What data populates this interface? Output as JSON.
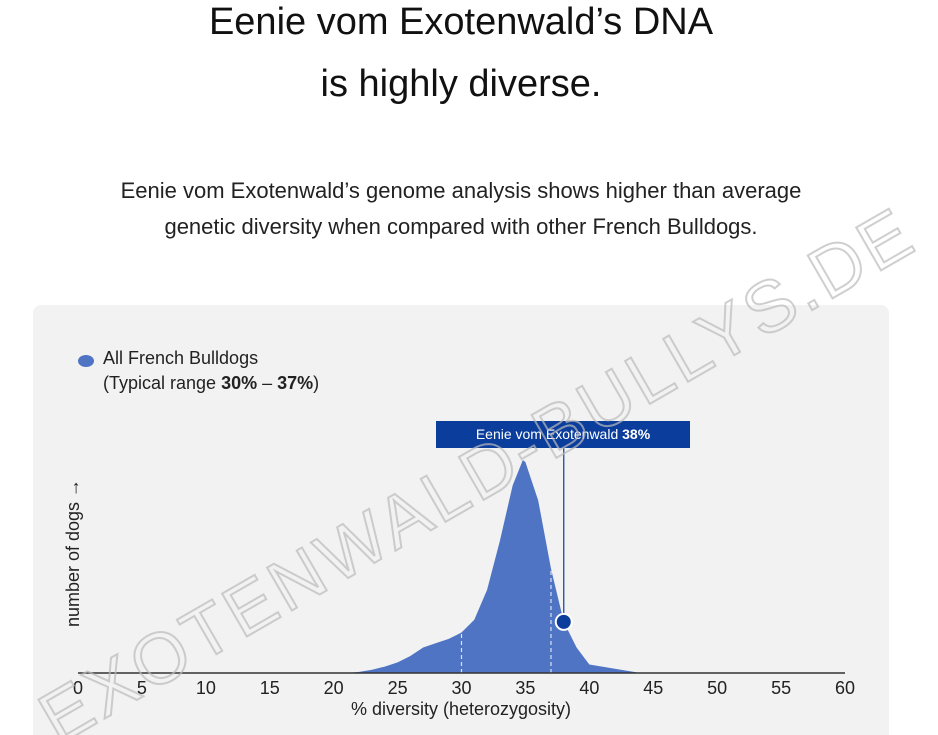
{
  "chart_data": {
    "type": "area",
    "title": [
      "Eenie vom Exotenwald’s DNA",
      "is highly diverse."
    ],
    "subtitle": [
      "Eenie vom Exotenwald’s genome analysis shows higher than average",
      "genetic diversity when compared with other French Bulldogs."
    ],
    "legend_label": "All French Bulldogs",
    "typical_range": [
      30,
      37
    ],
    "typical_range_value_labels": [
      "30%",
      "37%"
    ],
    "typical_range_text": {
      "prefix": "(Typical range ",
      "separator": " – ",
      "suffix": ")"
    },
    "marker": {
      "name": "Eenie vom Exotenwald",
      "value": 38,
      "value_label": "38%",
      "density": 24,
      "color": "#0b3d9c"
    },
    "x": [
      21,
      22,
      23,
      24,
      25,
      26,
      27,
      28,
      29,
      30,
      31,
      32,
      33,
      34,
      34.8,
      35,
      36,
      37,
      38,
      39,
      40,
      41,
      42,
      43,
      44
    ],
    "values": [
      0,
      0.5,
      1.5,
      3,
      5,
      8,
      12,
      14,
      16,
      19,
      25,
      39,
      62,
      88,
      100,
      99,
      81,
      49,
      24,
      12,
      4,
      3,
      2,
      1,
      0
    ],
    "color": "#4f74c4",
    "xlim": [
      0,
      60
    ],
    "xticks": [
      0,
      5,
      10,
      15,
      20,
      25,
      30,
      35,
      40,
      45,
      50,
      55,
      60
    ],
    "ylim": [
      0,
      100
    ],
    "xlabel": "% diversity (heterozygosity)",
    "ylabel": "number of dogs →",
    "watermark": "EXOTENWALD-BULLYS.DE"
  }
}
